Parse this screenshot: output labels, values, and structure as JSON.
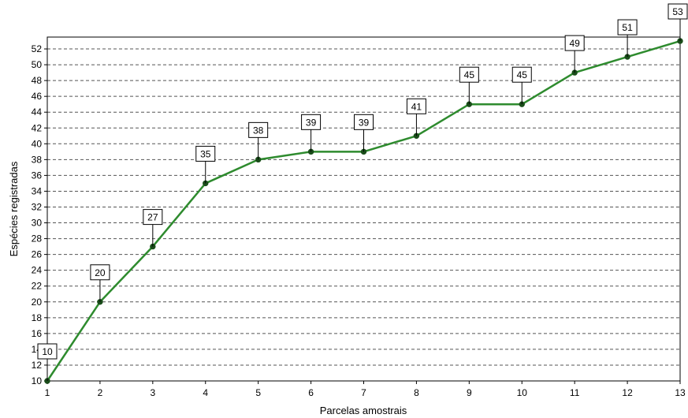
{
  "chart_data": {
    "type": "line",
    "title": "",
    "xlabel": "Parcelas amostrais",
    "ylabel": "Espécies registradas",
    "x": [
      1,
      2,
      3,
      4,
      5,
      6,
      7,
      8,
      9,
      10,
      11,
      12,
      13
    ],
    "series": [
      {
        "values": [
          10,
          20,
          27,
          35,
          38,
          39,
          39,
          41,
          45,
          45,
          49,
          51,
          53
        ],
        "color": "#2e8b2e",
        "marker_color": "#1a4d1a"
      }
    ],
    "xlim": [
      1,
      13
    ],
    "ylim": [
      10,
      53
    ],
    "y_ticks": [
      10,
      12,
      14,
      16,
      18,
      20,
      22,
      24,
      26,
      28,
      30,
      32,
      34,
      36,
      38,
      40,
      42,
      44,
      46,
      48,
      50,
      52
    ],
    "x_ticks": [
      1,
      2,
      3,
      4,
      5,
      6,
      7,
      8,
      9,
      10,
      11,
      12,
      13
    ],
    "grid": "horizontal-dashed",
    "data_labels": true,
    "legend": "none"
  }
}
